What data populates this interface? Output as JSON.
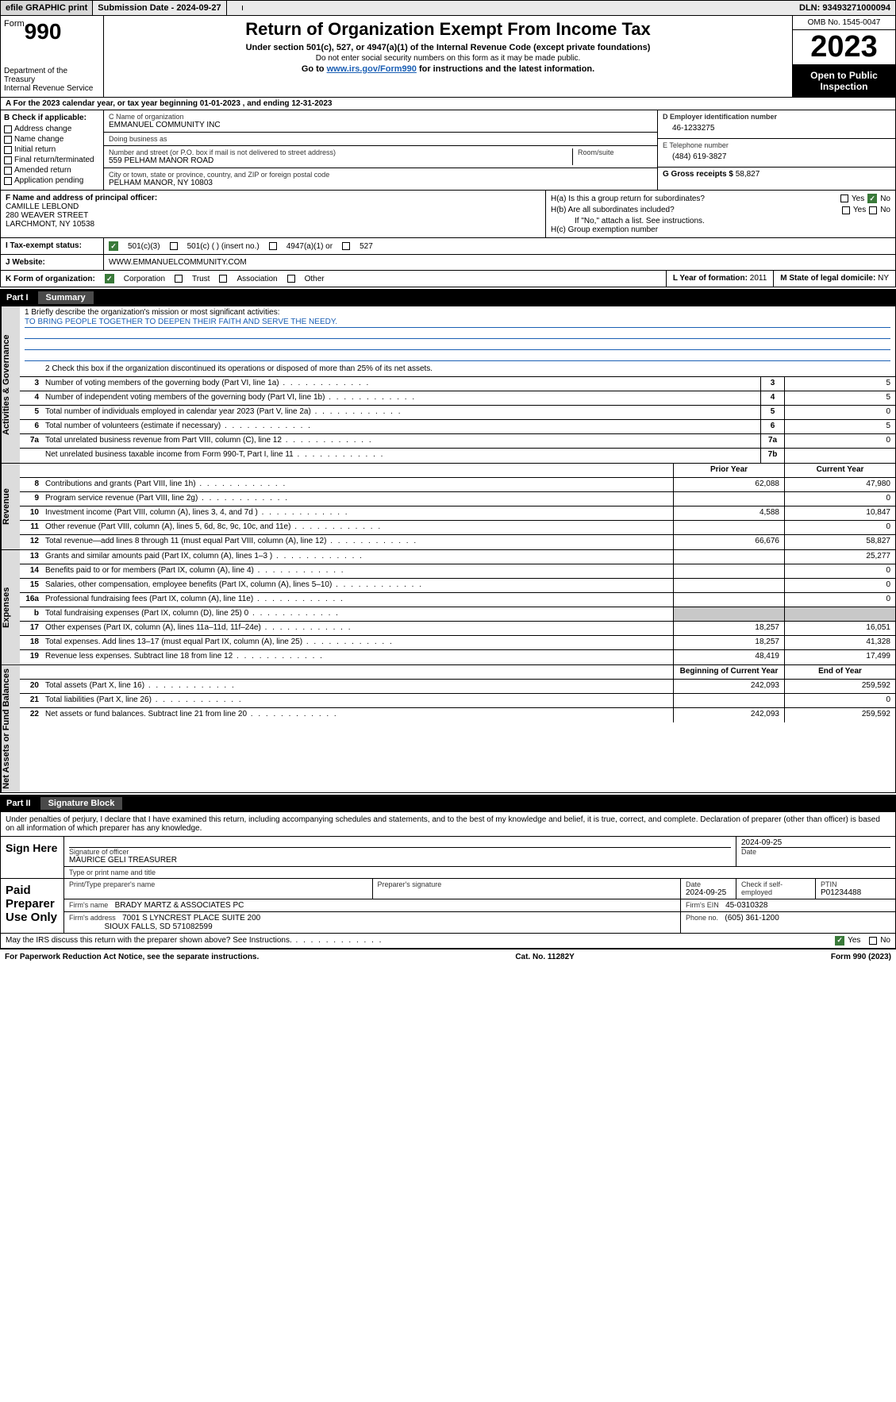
{
  "topbar": {
    "efile": "efile GRAPHIC print",
    "submission": "Submission Date - 2024-09-27",
    "dln": "DLN: 93493271000094"
  },
  "header": {
    "form_word": "Form",
    "form_num": "990",
    "title": "Return of Organization Exempt From Income Tax",
    "subtitle": "Under section 501(c), 527, or 4947(a)(1) of the Internal Revenue Code (except private foundations)",
    "note": "Do not enter social security numbers on this form as it may be made public.",
    "goto_pre": "Go to ",
    "goto_link": "www.irs.gov/Form990",
    "goto_post": " for instructions and the latest information.",
    "dept": "Department of the Treasury\nInternal Revenue Service",
    "omb": "OMB No. 1545-0047",
    "year": "2023",
    "open": "Open to Public Inspection"
  },
  "rowA": "A For the 2023 calendar year, or tax year beginning 01-01-2023   , and ending 12-31-2023",
  "colB": {
    "label": "B Check if applicable:",
    "items": [
      "Address change",
      "Name change",
      "Initial return",
      "Final return/terminated",
      "Amended return",
      "Application pending"
    ]
  },
  "org": {
    "name_label": "C Name of organization",
    "name": "EMMANUEL COMMUNITY INC",
    "dba_label": "Doing business as",
    "dba": "",
    "addr_label": "Number and street (or P.O. box if mail is not delivered to street address)",
    "addr": "559 PELHAM MANOR ROAD",
    "room_label": "Room/suite",
    "city_label": "City or town, state or province, country, and ZIP or foreign postal code",
    "city": "PELHAM MANOR, NY  10803"
  },
  "rightCol": {
    "ein_label": "D Employer identification number",
    "ein": "46-1233275",
    "phone_label": "E Telephone number",
    "phone": "(484) 619-3827",
    "gross_label": "G Gross receipts $",
    "gross": "58,827"
  },
  "officer": {
    "label": "F  Name and address of principal officer:",
    "name": "CAMILLE LEBLOND",
    "addr1": "280 WEAVER STREET",
    "addr2": "LARCHMONT, NY  10538"
  },
  "h": {
    "a": "H(a)  Is this a group return for subordinates?",
    "b": "H(b)  Are all subordinates included?",
    "b_note": "If \"No,\" attach a list. See instructions.",
    "c": "H(c)  Group exemption number",
    "yes": "Yes",
    "no": "No"
  },
  "taxStatus": {
    "label": "I   Tax-exempt status:",
    "opt1": "501(c)(3)",
    "opt2": "501(c) (  ) (insert no.)",
    "opt3": "4947(a)(1) or",
    "opt4": "527"
  },
  "website": {
    "label": "J   Website:",
    "value": "WWW.EMMANUELCOMMUNITY.COM"
  },
  "formK": {
    "label": "K Form of organization:",
    "corp": "Corporation",
    "trust": "Trust",
    "assoc": "Association",
    "other": "Other",
    "year_label": "L Year of formation: ",
    "year": "2011",
    "state_label": "M State of legal domicile: ",
    "state": "NY"
  },
  "part1": {
    "num": "Part I",
    "title": "Summary"
  },
  "mission": {
    "label": "1   Briefly describe the organization's mission or most significant activities:",
    "text": "TO BRING PEOPLE TOGETHER TO DEEPEN THEIR FAITH AND SERVE THE NEEDY."
  },
  "line2": "2    Check this box      if the organization discontinued its operations or disposed of more than 25% of its net assets.",
  "govRows": [
    {
      "n": "3",
      "d": "Number of voting members of the governing body (Part VI, line 1a)",
      "r": "3",
      "v": "5"
    },
    {
      "n": "4",
      "d": "Number of independent voting members of the governing body (Part VI, line 1b)",
      "r": "4",
      "v": "5"
    },
    {
      "n": "5",
      "d": "Total number of individuals employed in calendar year 2023 (Part V, line 2a)",
      "r": "5",
      "v": "0"
    },
    {
      "n": "6",
      "d": "Total number of volunteers (estimate if necessary)",
      "r": "6",
      "v": "5"
    },
    {
      "n": "7a",
      "d": "Total unrelated business revenue from Part VIII, column (C), line 12",
      "r": "7a",
      "v": "0"
    },
    {
      "n": "",
      "d": "Net unrelated business taxable income from Form 990-T, Part I, line 11",
      "r": "7b",
      "v": ""
    }
  ],
  "colHdrs": {
    "prior": "Prior Year",
    "current": "Current Year"
  },
  "revRows": [
    {
      "n": "8",
      "d": "Contributions and grants (Part VIII, line 1h)",
      "p": "62,088",
      "c": "47,980"
    },
    {
      "n": "9",
      "d": "Program service revenue (Part VIII, line 2g)",
      "p": "",
      "c": "0"
    },
    {
      "n": "10",
      "d": "Investment income (Part VIII, column (A), lines 3, 4, and 7d )",
      "p": "4,588",
      "c": "10,847"
    },
    {
      "n": "11",
      "d": "Other revenue (Part VIII, column (A), lines 5, 6d, 8c, 9c, 10c, and 11e)",
      "p": "",
      "c": "0"
    },
    {
      "n": "12",
      "d": "Total revenue—add lines 8 through 11 (must equal Part VIII, column (A), line 12)",
      "p": "66,676",
      "c": "58,827"
    }
  ],
  "expRows": [
    {
      "n": "13",
      "d": "Grants and similar amounts paid (Part IX, column (A), lines 1–3 )",
      "p": "",
      "c": "25,277"
    },
    {
      "n": "14",
      "d": "Benefits paid to or for members (Part IX, column (A), line 4)",
      "p": "",
      "c": "0"
    },
    {
      "n": "15",
      "d": "Salaries, other compensation, employee benefits (Part IX, column (A), lines 5–10)",
      "p": "",
      "c": "0"
    },
    {
      "n": "16a",
      "d": "Professional fundraising fees (Part IX, column (A), line 11e)",
      "p": "",
      "c": "0"
    },
    {
      "n": "b",
      "d": "Total fundraising expenses (Part IX, column (D), line 25) 0",
      "p": "grey",
      "c": "grey"
    },
    {
      "n": "17",
      "d": "Other expenses (Part IX, column (A), lines 11a–11d, 11f–24e)",
      "p": "18,257",
      "c": "16,051"
    },
    {
      "n": "18",
      "d": "Total expenses. Add lines 13–17 (must equal Part IX, column (A), line 25)",
      "p": "18,257",
      "c": "41,328"
    },
    {
      "n": "19",
      "d": "Revenue less expenses. Subtract line 18 from line 12",
      "p": "48,419",
      "c": "17,499"
    }
  ],
  "balHdrs": {
    "begin": "Beginning of Current Year",
    "end": "End of Year"
  },
  "balRows": [
    {
      "n": "20",
      "d": "Total assets (Part X, line 16)",
      "p": "242,093",
      "c": "259,592"
    },
    {
      "n": "21",
      "d": "Total liabilities (Part X, line 26)",
      "p": "",
      "c": "0"
    },
    {
      "n": "22",
      "d": "Net assets or fund balances. Subtract line 21 from line 20",
      "p": "242,093",
      "c": "259,592"
    }
  ],
  "part2": {
    "num": "Part II",
    "title": "Signature Block"
  },
  "sigIntro": "Under penalties of perjury, I declare that I have examined this return, including accompanying schedules and statements, and to the best of my knowledge and belief, it is true, correct, and complete. Declaration of preparer (other than officer) is based on all information of which preparer has any knowledge.",
  "sign": {
    "here": "Sign Here",
    "sig_label": "Signature of officer",
    "officer": "MAURICE GELI TREASURER",
    "name_label": "Type or print name and title",
    "date_label": "Date",
    "date": "2024-09-25"
  },
  "paid": {
    "label": "Paid Preparer Use Only",
    "prep_label": "Print/Type preparer's name",
    "sig_label": "Preparer's signature",
    "date_label": "Date",
    "date": "2024-09-25",
    "check_label": "Check       if self-employed",
    "ptin_label": "PTIN",
    "ptin": "P01234488",
    "firm_name_label": "Firm's name",
    "firm_name": "BRADY MARTZ & ASSOCIATES PC",
    "firm_ein_label": "Firm's EIN",
    "firm_ein": "45-0310328",
    "firm_addr_label": "Firm's address",
    "firm_addr1": "7001 S LYNCREST PLACE SUITE 200",
    "firm_addr2": "SIOUX FALLS, SD  571082599",
    "phone_label": "Phone no.",
    "phone": "(605) 361-1200"
  },
  "discuss": "May the IRS discuss this return with the preparer shown above? See Instructions.",
  "footer": {
    "left": "For Paperwork Reduction Act Notice, see the separate instructions.",
    "mid": "Cat. No. 11282Y",
    "right": "Form 990 (2023)"
  },
  "vtabs": {
    "gov": "Activities & Governance",
    "rev": "Revenue",
    "exp": "Expenses",
    "bal": "Net Assets or Fund Balances"
  }
}
